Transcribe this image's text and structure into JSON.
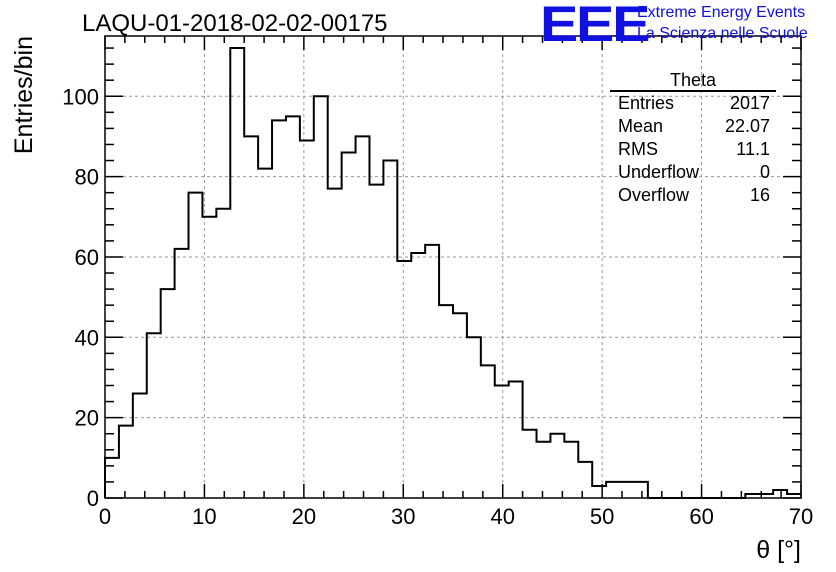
{
  "header": {
    "title": "LAQU-01-2018-02-02-00175",
    "logo_text": "EEE",
    "logo_line1": "Extreme Energy Events",
    "logo_line2": "La Scienza nelle Scuole"
  },
  "stats": {
    "title": "Theta",
    "rows": [
      {
        "label": "Entries",
        "value": "2017"
      },
      {
        "label": "Mean",
        "value": "22.07"
      },
      {
        "label": "RMS",
        "value": "11.1"
      },
      {
        "label": "Underflow",
        "value": "0"
      },
      {
        "label": "Overflow",
        "value": "16"
      }
    ]
  },
  "chart_data": {
    "type": "bar",
    "histogram": true,
    "xlabel": "θ [°]",
    "ylabel": "Entries/bin",
    "xlim": [
      0,
      70
    ],
    "ylim": [
      0,
      115
    ],
    "bin_width": 1.4,
    "xticks": [
      0,
      10,
      20,
      30,
      40,
      50,
      60,
      70
    ],
    "yticks": [
      0,
      20,
      40,
      60,
      80,
      100
    ],
    "grid": true,
    "values": [
      10,
      18,
      26,
      41,
      52,
      62,
      76,
      70,
      72,
      112,
      90,
      82,
      94,
      95,
      89,
      100,
      77,
      86,
      90,
      78,
      84,
      59,
      61,
      63,
      48,
      46,
      40,
      33,
      28,
      29,
      17,
      14,
      16,
      14,
      9,
      3,
      4,
      4,
      4,
      0,
      0,
      0,
      0,
      0,
      0,
      0,
      1,
      1,
      2,
      1
    ]
  }
}
